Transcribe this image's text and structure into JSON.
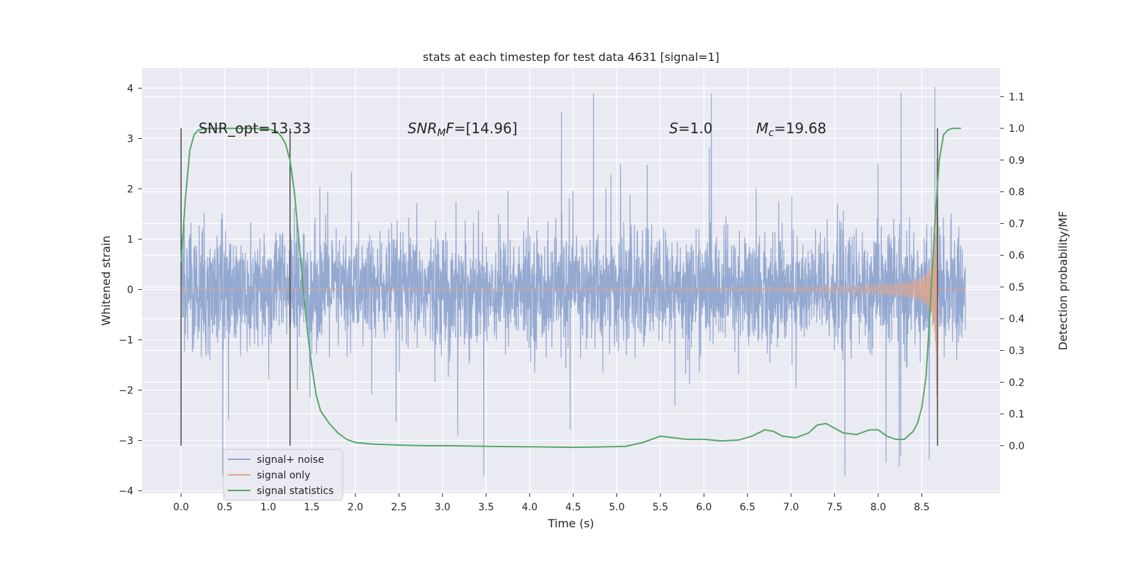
{
  "chart_data": {
    "type": "line",
    "title": "stats at each timestep for test data 4631 [signal=1]",
    "xlabel": "Time (s)",
    "ylabel": "Whitened strain",
    "ylabel_right": "Detection probability/MF",
    "xlim": [
      -0.45,
      9.4
    ],
    "ylim": [
      -4.05,
      4.4
    ],
    "ylim_right": [
      -0.15,
      1.19
    ],
    "x_ticks": [
      "0.0",
      "0.5",
      "1.0",
      "1.5",
      "2.0",
      "2.5",
      "3.0",
      "3.5",
      "4.0",
      "4.5",
      "5.0",
      "5.5",
      "6.0",
      "6.5",
      "7.0",
      "7.5",
      "8.0",
      "8.5"
    ],
    "x_tick_values": [
      0.0,
      0.5,
      1.0,
      1.5,
      2.0,
      2.5,
      3.0,
      3.5,
      4.0,
      4.5,
      5.0,
      5.5,
      6.0,
      6.5,
      7.0,
      7.5,
      8.0,
      8.5
    ],
    "y_ticks": [
      "4",
      "3",
      "2",
      "1",
      "0",
      "−1",
      "−2",
      "−3",
      "−4"
    ],
    "y_tick_values": [
      4,
      3,
      2,
      1,
      0,
      -1,
      -2,
      -3,
      -4
    ],
    "y_right_ticks": [
      "1.1",
      "1.0",
      "0.9",
      "0.8",
      "0.7",
      "0.6",
      "0.5",
      "0.4",
      "0.3",
      "0.2",
      "0.1",
      "0.0"
    ],
    "y_right_tick_values": [
      1.1,
      1.0,
      0.9,
      0.8,
      0.7,
      0.6,
      0.5,
      0.4,
      0.3,
      0.2,
      0.1,
      0.0
    ],
    "grid": true,
    "annotations": [
      {
        "text": "SNR_opt=13.33",
        "x": 0.2,
        "y": 3.2
      },
      {
        "text": "SNR_MF=[14.96]",
        "x": 2.6,
        "y": 3.2
      },
      {
        "text": "S=1.0",
        "x": 5.6,
        "y": 3.2
      },
      {
        "text": "M_c=19.68",
        "x": 6.6,
        "y": 3.2
      }
    ],
    "vertical_lines": [
      0.0,
      1.25,
      8.68
    ],
    "series": [
      {
        "name": "signal+ noise",
        "axis": "left",
        "color": "#8fa5cf",
        "t_range": [
          0.0,
          9.0
        ],
        "envelope": "noise sigma ~0.55, typical peaks ±2.5, max 4.02 at t=8.65"
      },
      {
        "name": "signal only",
        "axis": "left",
        "color": "#e0a58c",
        "t_range": [
          0.0,
          9.0
        ],
        "envelope": "chirp; amplitude ~0 until 4.5 s, grows to ~2.6 at merger t=8.68"
      },
      {
        "name": "signal statistics",
        "axis": "right",
        "color": "#55a868",
        "x": [
          0.0,
          0.05,
          0.1,
          0.15,
          0.2,
          0.3,
          0.5,
          0.8,
          1.0,
          1.1,
          1.15,
          1.2,
          1.25,
          1.3,
          1.35,
          1.4,
          1.45,
          1.5,
          1.55,
          1.6,
          1.7,
          1.8,
          1.9,
          2.0,
          2.2,
          2.5,
          2.8,
          3.1,
          3.5,
          3.8,
          4.2,
          4.5,
          4.8,
          5.1,
          5.3,
          5.5,
          5.65,
          5.8,
          6.0,
          6.2,
          6.4,
          6.55,
          6.7,
          6.8,
          6.9,
          7.05,
          7.2,
          7.3,
          7.4,
          7.5,
          7.6,
          7.75,
          7.9,
          8.0,
          8.1,
          8.2,
          8.3,
          8.4,
          8.45,
          8.5,
          8.55,
          8.6,
          8.65,
          8.7,
          8.75,
          8.8,
          8.85,
          8.9,
          8.95
        ],
        "values": [
          0.58,
          0.78,
          0.93,
          0.98,
          0.995,
          1.0,
          1.0,
          1.0,
          0.998,
          0.99,
          0.975,
          0.95,
          0.9,
          0.8,
          0.65,
          0.5,
          0.36,
          0.25,
          0.16,
          0.11,
          0.07,
          0.04,
          0.02,
          0.01,
          0.005,
          0.002,
          0.0,
          0.0,
          -0.002,
          -0.003,
          -0.004,
          -0.005,
          -0.004,
          -0.002,
          0.01,
          0.03,
          0.025,
          0.02,
          0.02,
          0.015,
          0.018,
          0.03,
          0.05,
          0.045,
          0.03,
          0.025,
          0.04,
          0.065,
          0.07,
          0.055,
          0.04,
          0.035,
          0.05,
          0.05,
          0.03,
          0.02,
          0.02,
          0.045,
          0.07,
          0.12,
          0.22,
          0.45,
          0.7,
          0.9,
          0.98,
          0.995,
          1.0,
          1.0,
          1.0
        ]
      }
    ],
    "legend": {
      "placement": "lower-left",
      "entries": [
        "signal+ noise",
        "signal only",
        "signal statistics"
      ]
    }
  }
}
